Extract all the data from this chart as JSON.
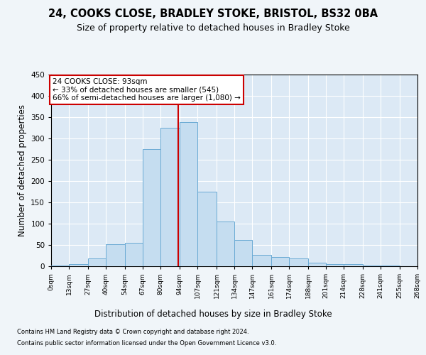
{
  "title1": "24, COOKS CLOSE, BRADLEY STOKE, BRISTOL, BS32 0BA",
  "title2": "Size of property relative to detached houses in Bradley Stoke",
  "xlabel": "Distribution of detached houses by size in Bradley Stoke",
  "ylabel": "Number of detached properties",
  "footnote1": "Contains HM Land Registry data © Crown copyright and database right 2024.",
  "footnote2": "Contains public sector information licensed under the Open Government Licence v3.0.",
  "annotation_line1": "24 COOKS CLOSE: 93sqm",
  "annotation_line2": "← 33% of detached houses are smaller (545)",
  "annotation_line3": "66% of semi-detached houses are larger (1,080) →",
  "bar_edges": [
    0,
    13,
    27,
    40,
    54,
    67,
    80,
    94,
    107,
    121,
    134,
    147,
    161,
    174,
    188,
    201,
    214,
    228,
    241,
    255,
    268
  ],
  "bar_heights": [
    2,
    5,
    18,
    52,
    55,
    275,
    325,
    338,
    175,
    105,
    62,
    26,
    22,
    18,
    8,
    5,
    5,
    2,
    2,
    0
  ],
  "bar_color": "#c5ddf0",
  "bar_edge_color": "#6aaad4",
  "vline_color": "#cc0000",
  "vline_x": 93,
  "box_edge_color": "#cc0000",
  "ylim_max": 450,
  "fig_bg": "#f0f5f9",
  "plot_bg": "#dce9f5",
  "grid_color": "#ffffff",
  "tick_labels": [
    "0sqm",
    "13sqm",
    "27sqm",
    "40sqm",
    "54sqm",
    "67sqm",
    "80sqm",
    "94sqm",
    "107sqm",
    "121sqm",
    "134sqm",
    "147sqm",
    "161sqm",
    "174sqm",
    "188sqm",
    "201sqm",
    "214sqm",
    "228sqm",
    "241sqm",
    "255sqm",
    "268sqm"
  ],
  "yticks": [
    0,
    50,
    100,
    150,
    200,
    250,
    300,
    350,
    400,
    450
  ]
}
